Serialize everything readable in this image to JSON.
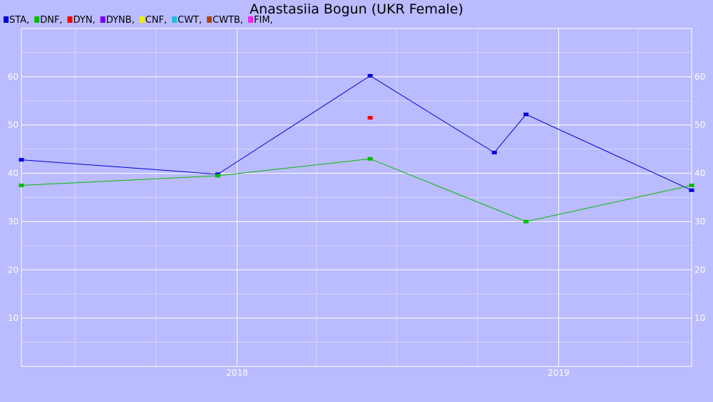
{
  "chart_data": {
    "type": "line",
    "title": "Anastasiia Bogun (UKR Female)",
    "xlabel": "",
    "ylabel": "",
    "x_axis": {
      "type": "date",
      "range": [
        "2017-05-01",
        "2019-06-01"
      ],
      "tick_labels": [
        {
          "date": "2018-01-01",
          "label": "2018"
        },
        {
          "date": "2019-01-01",
          "label": "2019"
        }
      ]
    },
    "ylim": [
      0,
      70
    ],
    "y_ticks": [
      10,
      20,
      30,
      40,
      50,
      60
    ],
    "grid": true,
    "legend_placement": "top-left",
    "legend": [
      {
        "label": "STA,",
        "color": "#0000dd"
      },
      {
        "label": "DNF,",
        "color": "#00bb00"
      },
      {
        "label": "DYN,",
        "color": "#ee0000"
      },
      {
        "label": "DYNB,",
        "color": "#7700ee"
      },
      {
        "label": "CNF,",
        "color": "#eeee00"
      },
      {
        "label": "CWT,",
        "color": "#22bbdd"
      },
      {
        "label": "CWTB,",
        "color": "#aa4400"
      },
      {
        "label": "FIM,",
        "color": "#ee22ee"
      }
    ],
    "series": [
      {
        "key": "STA",
        "color": "#0000dd",
        "connected": true,
        "points": [
          {
            "x": "2017-05-01",
            "y": 42.8
          },
          {
            "x": "2017-12-10",
            "y": 39.8
          },
          {
            "x": "2018-06-01",
            "y": 60.2
          },
          {
            "x": "2018-10-20",
            "y": 44.3
          },
          {
            "x": "2018-11-25",
            "y": 52.2
          },
          {
            "x": "2019-06-01",
            "y": 36.5
          }
        ]
      },
      {
        "key": "DNF",
        "color": "#00bb00",
        "connected": true,
        "points": [
          {
            "x": "2017-05-01",
            "y": 37.5
          },
          {
            "x": "2017-12-10",
            "y": 39.5
          },
          {
            "x": "2018-06-01",
            "y": 43.0
          },
          {
            "x": "2018-11-25",
            "y": 30.0
          },
          {
            "x": "2019-06-01",
            "y": 37.5
          }
        ]
      },
      {
        "key": "DYN",
        "color": "#ee0000",
        "connected": false,
        "points": [
          {
            "x": "2018-06-01",
            "y": 51.5
          }
        ]
      }
    ]
  }
}
